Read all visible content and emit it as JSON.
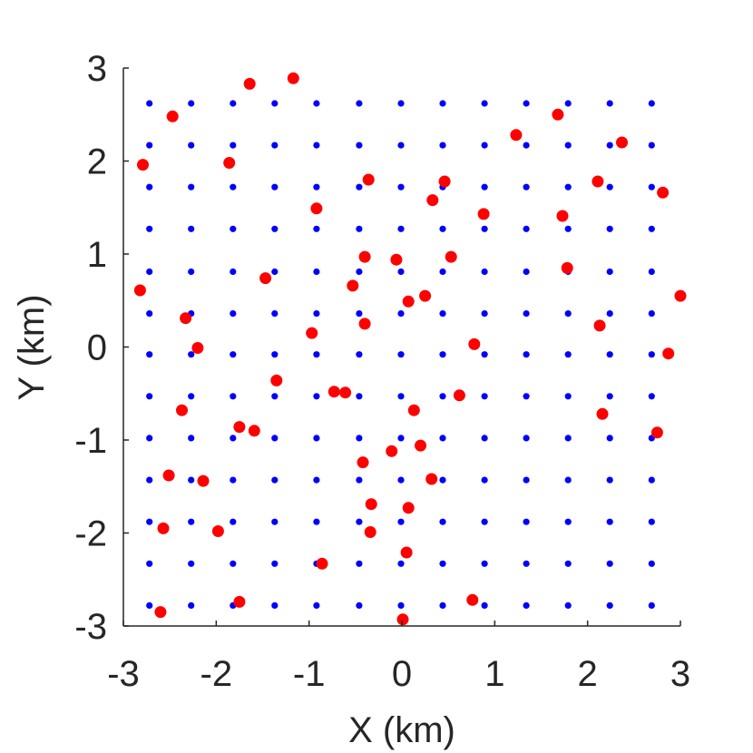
{
  "chart_data": {
    "type": "scatter",
    "title": "",
    "xlabel": "X (km)",
    "ylabel": "Y (km)",
    "xlim": [
      -3,
      3
    ],
    "ylim": [
      -3,
      3
    ],
    "xticks": [
      -3,
      -2,
      -1,
      0,
      1,
      2,
      3
    ],
    "yticks": [
      -3,
      -2,
      -1,
      0,
      1,
      2,
      3
    ],
    "xtick_labels": [
      "-3",
      "-2",
      "-1",
      "0",
      "1",
      "2",
      "3"
    ],
    "ytick_labels": [
      "-3",
      "-2",
      "-1",
      "0",
      "1",
      "2",
      "3"
    ],
    "grid": false,
    "legend": "none",
    "series": [
      {
        "color": "#0000ff",
        "marker": "small-dot",
        "x_grid": [
          -2.72,
          -2.27,
          -1.82,
          -1.37,
          -0.92,
          -0.46,
          -0.01,
          0.44,
          0.89,
          1.34,
          1.79,
          2.24,
          2.69
        ],
        "y_grid": [
          2.62,
          2.17,
          1.72,
          1.27,
          0.81,
          0.36,
          -0.08,
          -0.53,
          -0.98,
          -1.43,
          -1.88,
          -2.33,
          -2.78
        ]
      },
      {
        "color": "#ff0000",
        "marker": "large-dot",
        "points": [
          [
            -1.17,
            2.89
          ],
          [
            -1.64,
            2.83
          ],
          [
            -2.47,
            2.48
          ],
          [
            1.68,
            2.5
          ],
          [
            1.23,
            2.28
          ],
          [
            2.37,
            2.2
          ],
          [
            -2.79,
            1.96
          ],
          [
            -1.86,
            1.98
          ],
          [
            -0.36,
            1.8
          ],
          [
            0.46,
            1.78
          ],
          [
            2.11,
            1.78
          ],
          [
            2.81,
            1.66
          ],
          [
            0.33,
            1.58
          ],
          [
            -0.92,
            1.49
          ],
          [
            0.88,
            1.43
          ],
          [
            1.73,
            1.41
          ],
          [
            -0.4,
            0.97
          ],
          [
            -0.06,
            0.94
          ],
          [
            0.53,
            0.97
          ],
          [
            1.78,
            0.85
          ],
          [
            -1.47,
            0.74
          ],
          [
            -0.53,
            0.66
          ],
          [
            -2.82,
            0.61
          ],
          [
            0.25,
            0.55
          ],
          [
            0.07,
            0.49
          ],
          [
            3.0,
            0.55
          ],
          [
            -2.33,
            0.31
          ],
          [
            -0.4,
            0.25
          ],
          [
            2.13,
            0.23
          ],
          [
            -0.97,
            0.15
          ],
          [
            0.78,
            0.03
          ],
          [
            -2.2,
            -0.01
          ],
          [
            2.87,
            -0.07
          ],
          [
            -1.35,
            -0.36
          ],
          [
            -0.73,
            -0.48
          ],
          [
            -0.61,
            -0.49
          ],
          [
            0.62,
            -0.52
          ],
          [
            -2.37,
            -0.68
          ],
          [
            0.13,
            -0.68
          ],
          [
            2.16,
            -0.72
          ],
          [
            -1.75,
            -0.86
          ],
          [
            -1.59,
            -0.9
          ],
          [
            2.75,
            -0.92
          ],
          [
            -0.11,
            -1.12
          ],
          [
            0.2,
            -1.06
          ],
          [
            -0.42,
            -1.24
          ],
          [
            -2.51,
            -1.38
          ],
          [
            -2.14,
            -1.44
          ],
          [
            0.32,
            -1.42
          ],
          [
            -0.33,
            -1.69
          ],
          [
            0.07,
            -1.73
          ],
          [
            -2.57,
            -1.95
          ],
          [
            -1.98,
            -1.98
          ],
          [
            -0.34,
            -1.99
          ],
          [
            0.05,
            -2.21
          ],
          [
            -0.86,
            -2.33
          ],
          [
            -1.75,
            -2.74
          ],
          [
            0.76,
            -2.72
          ],
          [
            -2.6,
            -2.85
          ],
          [
            0.01,
            -2.93
          ]
        ]
      }
    ]
  }
}
